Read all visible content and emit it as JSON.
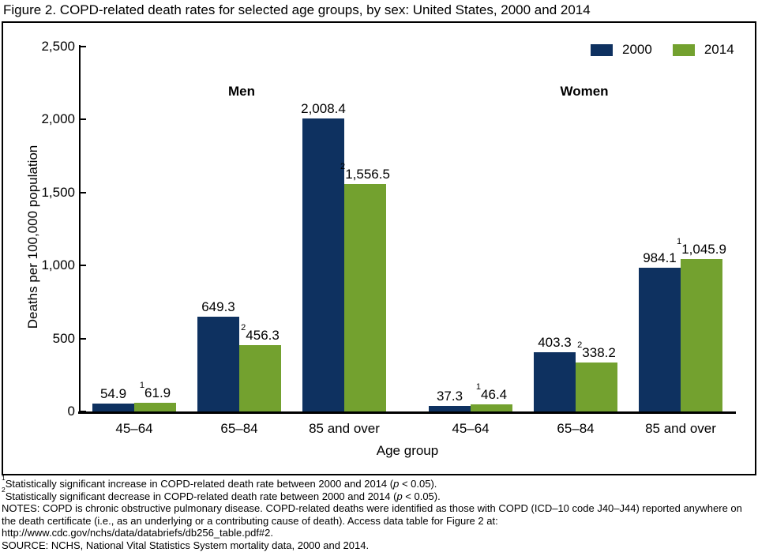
{
  "title": "Figure 2. COPD-related death rates for selected age groups, by sex: United States, 2000 and 2014",
  "chart_data": {
    "type": "bar",
    "title": "Figure 2. COPD-related death rates for selected age groups, by sex: United States, 2000 and 2014",
    "xlabel": "Age group",
    "ylabel": "Deaths per 100,000 population",
    "ylim": [
      0,
      2500
    ],
    "ytick_labels": [
      "0",
      "500",
      "1,000",
      "1,500",
      "2,000",
      "2,500"
    ],
    "grid": "off",
    "legend_position": "top-right",
    "series": [
      {
        "name": "2000",
        "color": "#0e3160"
      },
      {
        "name": "2014",
        "color": "#73a12f"
      }
    ],
    "sections": [
      {
        "label": "Men",
        "groups": [
          {
            "category": "45–64",
            "bars": [
              {
                "series": "2000",
                "value": 54.9,
                "label": "54.9",
                "sup": ""
              },
              {
                "series": "2014",
                "value": 61.9,
                "label": "61.9",
                "sup": "1"
              }
            ]
          },
          {
            "category": "65–84",
            "bars": [
              {
                "series": "2000",
                "value": 649.3,
                "label": "649.3",
                "sup": ""
              },
              {
                "series": "2014",
                "value": 456.3,
                "label": "456.3",
                "sup": "2"
              }
            ]
          },
          {
            "category": "85 and over",
            "bars": [
              {
                "series": "2000",
                "value": 2008.4,
                "label": "2,008.4",
                "sup": ""
              },
              {
                "series": "2014",
                "value": 1556.5,
                "label": "1,556.5",
                "sup": "2"
              }
            ]
          }
        ]
      },
      {
        "label": "Women",
        "groups": [
          {
            "category": "45–64",
            "bars": [
              {
                "series": "2000",
                "value": 37.3,
                "label": "37.3",
                "sup": ""
              },
              {
                "series": "2014",
                "value": 46.4,
                "label": "46.4",
                "sup": "1"
              }
            ]
          },
          {
            "category": "65–84",
            "bars": [
              {
                "series": "2000",
                "value": 403.3,
                "label": "403.3",
                "sup": ""
              },
              {
                "series": "2014",
                "value": 338.2,
                "label": "338.2",
                "sup": "2"
              }
            ]
          },
          {
            "category": "85 and over",
            "bars": [
              {
                "series": "2000",
                "value": 984.1,
                "label": "984.1",
                "sup": ""
              },
              {
                "series": "2014",
                "value": 1045.9,
                "label": "1,045.9",
                "sup": "1"
              }
            ]
          }
        ]
      }
    ]
  },
  "footnotes": {
    "fn1": {
      "sup": "1",
      "before": "Statistically significant increase in COPD-related death rate between 2000 and 2014 (",
      "italic": "p",
      "after": " < 0.05)."
    },
    "fn2": {
      "sup": "2",
      "before": "Statistically significant decrease in COPD-related death rate between 2000 and 2014 (",
      "italic": "p",
      "after": " < 0.05)."
    },
    "notes": "NOTES: COPD is chronic obstructive pulmonary disease. COPD-related deaths were identified as those with COPD (ICD–10 code J40–J44) reported anywhere on the death certificate (i.e., as an underlying or a contributing cause of death). Access data table for Figure 2 at: http://www.cdc.gov/nchs/data/databriefs/db256_table.pdf#2.",
    "source": "SOURCE: NCHS, National Vital Statistics System mortality data, 2000 and 2014."
  }
}
